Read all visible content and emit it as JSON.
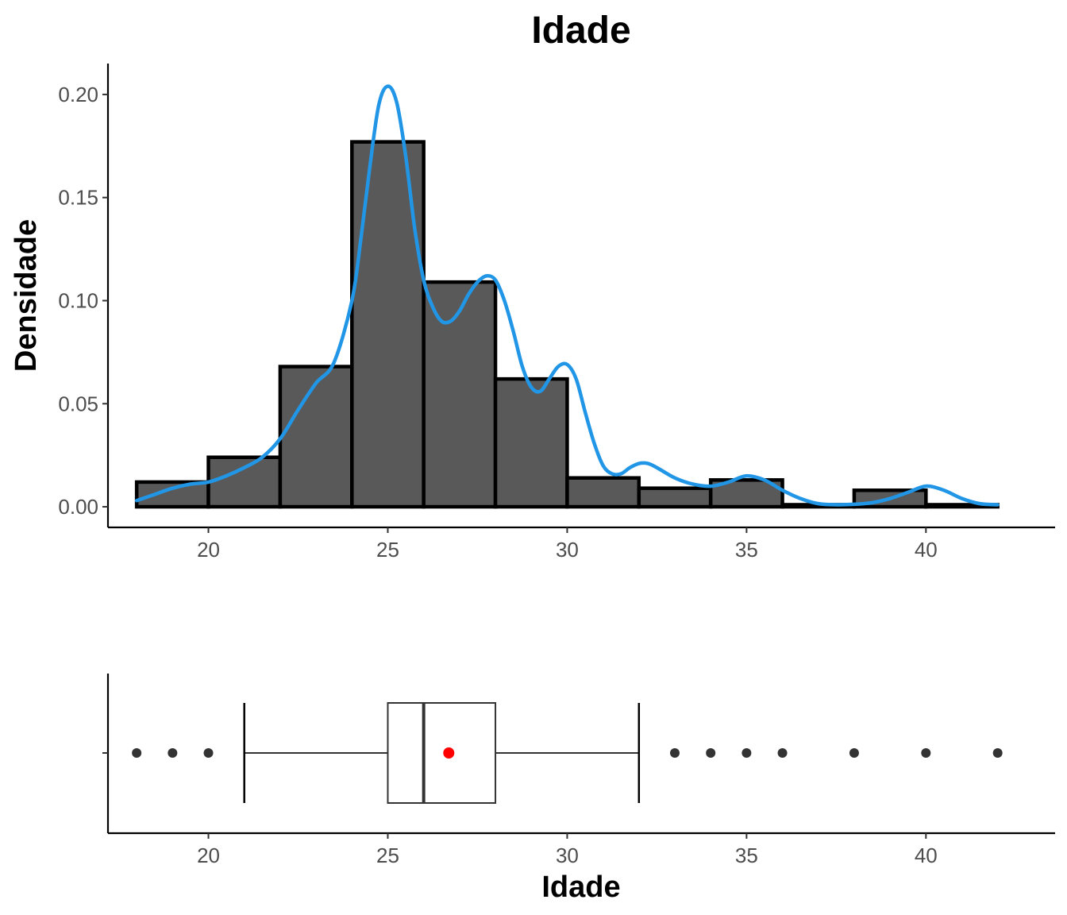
{
  "chart_data": [
    {
      "type": "histogram",
      "title": "Idade",
      "ylabel": "Densidade",
      "xlabel": "",
      "xlim": [
        17.2,
        43.6
      ],
      "ylim": [
        -0.01,
        0.215
      ],
      "xticks": [
        20,
        25,
        30,
        35,
        40
      ],
      "yticks": [
        0.0,
        0.05,
        0.1,
        0.15,
        0.2
      ],
      "ytick_labels": [
        "0.00",
        "0.05",
        "0.10",
        "0.15",
        "0.20"
      ],
      "bins": [
        {
          "x0": 18,
          "x1": 20,
          "density": 0.012
        },
        {
          "x0": 20,
          "x1": 22,
          "density": 0.024
        },
        {
          "x0": 22,
          "x1": 24,
          "density": 0.068
        },
        {
          "x0": 24,
          "x1": 26,
          "density": 0.177
        },
        {
          "x0": 26,
          "x1": 28,
          "density": 0.109
        },
        {
          "x0": 28,
          "x1": 30,
          "density": 0.062
        },
        {
          "x0": 30,
          "x1": 32,
          "density": 0.014
        },
        {
          "x0": 32,
          "x1": 34,
          "density": 0.009
        },
        {
          "x0": 34,
          "x1": 36,
          "density": 0.013
        },
        {
          "x0": 36,
          "x1": 38,
          "density": 0.001
        },
        {
          "x0": 38,
          "x1": 40,
          "density": 0.008
        },
        {
          "x0": 40,
          "x1": 42,
          "density": 0.001
        }
      ],
      "bar_fill": "#595959",
      "bar_stroke": "#000000",
      "density_curve": {
        "color": "#2196E6",
        "points": [
          [
            18.0,
            0.003
          ],
          [
            18.5,
            0.006
          ],
          [
            19.0,
            0.009
          ],
          [
            19.5,
            0.011
          ],
          [
            20.0,
            0.012
          ],
          [
            20.5,
            0.015
          ],
          [
            21.0,
            0.019
          ],
          [
            21.5,
            0.024
          ],
          [
            22.0,
            0.033
          ],
          [
            22.5,
            0.047
          ],
          [
            23.0,
            0.06
          ],
          [
            23.5,
            0.07
          ],
          [
            24.0,
            0.1
          ],
          [
            24.25,
            0.13
          ],
          [
            24.5,
            0.165
          ],
          [
            24.75,
            0.195
          ],
          [
            25.0,
            0.204
          ],
          [
            25.25,
            0.196
          ],
          [
            25.5,
            0.17
          ],
          [
            25.75,
            0.135
          ],
          [
            26.0,
            0.11
          ],
          [
            26.25,
            0.097
          ],
          [
            26.5,
            0.09
          ],
          [
            26.75,
            0.09
          ],
          [
            27.0,
            0.095
          ],
          [
            27.25,
            0.103
          ],
          [
            27.5,
            0.109
          ],
          [
            27.75,
            0.112
          ],
          [
            28.0,
            0.11
          ],
          [
            28.25,
            0.1
          ],
          [
            28.5,
            0.085
          ],
          [
            28.75,
            0.068
          ],
          [
            29.0,
            0.058
          ],
          [
            29.25,
            0.056
          ],
          [
            29.5,
            0.062
          ],
          [
            29.75,
            0.068
          ],
          [
            30.0,
            0.069
          ],
          [
            30.25,
            0.062
          ],
          [
            30.5,
            0.046
          ],
          [
            30.75,
            0.031
          ],
          [
            31.0,
            0.02
          ],
          [
            31.25,
            0.016
          ],
          [
            31.5,
            0.016
          ],
          [
            31.75,
            0.019
          ],
          [
            32.0,
            0.021
          ],
          [
            32.25,
            0.021
          ],
          [
            32.5,
            0.019
          ],
          [
            33.0,
            0.014
          ],
          [
            33.5,
            0.011
          ],
          [
            34.0,
            0.01
          ],
          [
            34.5,
            0.012
          ],
          [
            35.0,
            0.015
          ],
          [
            35.5,
            0.013
          ],
          [
            36.0,
            0.008
          ],
          [
            36.5,
            0.004
          ],
          [
            37.0,
            0.0015
          ],
          [
            37.5,
            0.001
          ],
          [
            38.0,
            0.0012
          ],
          [
            38.5,
            0.002
          ],
          [
            39.0,
            0.004
          ],
          [
            39.5,
            0.007
          ],
          [
            40.0,
            0.01
          ],
          [
            40.5,
            0.008
          ],
          [
            41.0,
            0.004
          ],
          [
            41.5,
            0.0015
          ],
          [
            42.0,
            0.001
          ]
        ]
      }
    },
    {
      "type": "boxplot",
      "xlabel": "Idade",
      "xlim": [
        17.2,
        43.6
      ],
      "xticks": [
        20,
        25,
        30,
        35,
        40
      ],
      "min_whisker": 21,
      "q1": 25,
      "median": 26,
      "q3": 28,
      "max_whisker": 32,
      "mean": 26.7,
      "mean_color": "#FF0000",
      "outliers": [
        18,
        19,
        20,
        33,
        34,
        35,
        36,
        38,
        40,
        42
      ]
    }
  ]
}
